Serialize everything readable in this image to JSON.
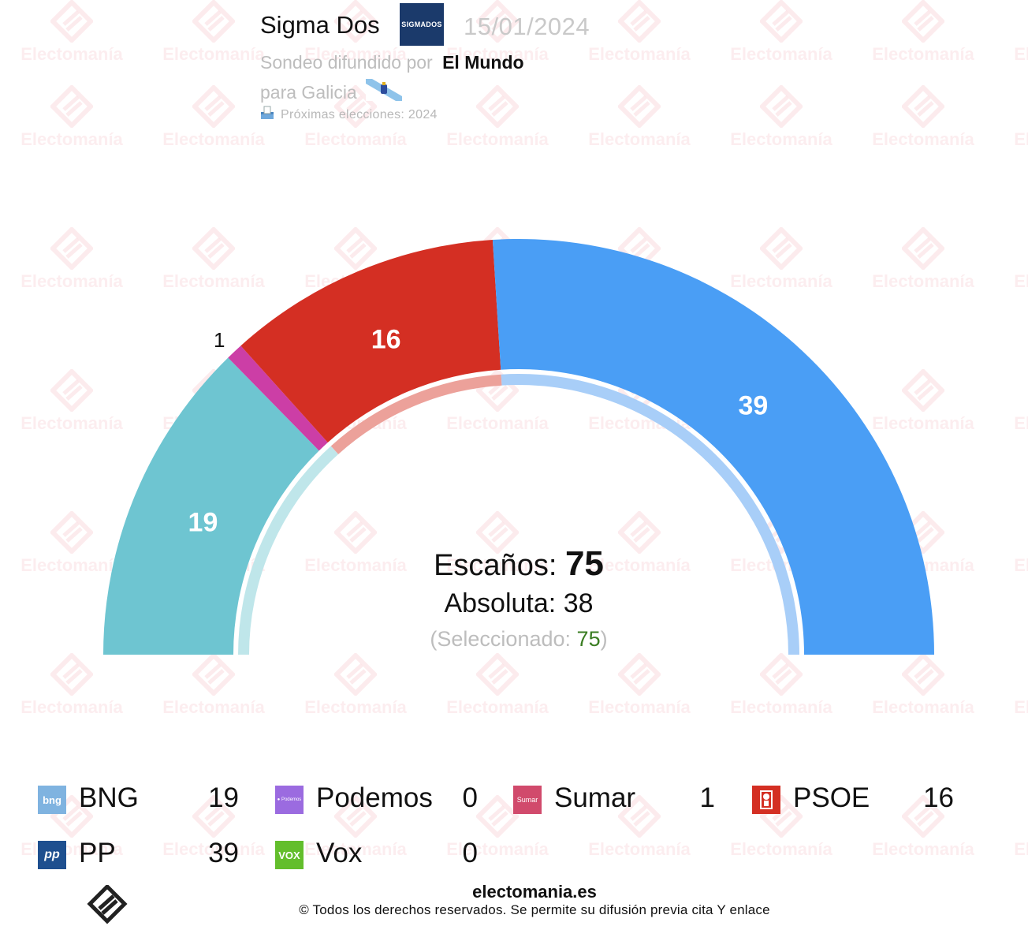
{
  "header": {
    "pollster": "Sigma Dos",
    "pollster_logo_text": "SIGMADOS",
    "date": "15/01/2024",
    "published_by_label": "Sondeo difundido por",
    "media": "El Mundo",
    "region_label": "para Galicia",
    "next_elections": "Próximas elecciones: 2024"
  },
  "watermark": "Electomanía",
  "summary": {
    "seats_label": "Escaños:",
    "seats_total": "75",
    "absolute_label": "Absoluta:",
    "absolute_value": "38",
    "selected_label": "(Seleccionado:",
    "selected_value": "75",
    "selected_close": ")"
  },
  "chart_data": {
    "type": "pie",
    "subtype": "parliament-semicircle",
    "total_seats": 75,
    "majority": 38,
    "series": [
      {
        "name": "BNG",
        "value": 19,
        "color": "#6ec5d1"
      },
      {
        "name": "Podemos",
        "value": 0,
        "color": "#a56de2"
      },
      {
        "name": "Sumar",
        "value": 1,
        "color": "#cc3ea6"
      },
      {
        "name": "PSOE",
        "value": 16,
        "color": "#d42f23"
      },
      {
        "name": "PP",
        "value": 39,
        "color": "#4a9ef5"
      },
      {
        "name": "Vox",
        "value": 0,
        "color": "#63be2c"
      }
    ],
    "inner_ring": [
      {
        "name": "BNG + Sumar block",
        "value": 20,
        "color": "#bfe6ea"
      },
      {
        "name": "PSOE",
        "value": 16,
        "color": "#eca19a"
      },
      {
        "name": "PP",
        "value": 39,
        "color": "#a8cef8"
      }
    ],
    "data_labels": [
      "19",
      "1",
      "16",
      "39"
    ]
  },
  "legend": [
    {
      "name": "BNG",
      "value": "19",
      "icon": "bng-logo-icon",
      "color": "#7fb3e0",
      "icon_text": "bng"
    },
    {
      "name": "Podemos",
      "value": "0",
      "icon": "podemos-logo-icon",
      "color": "#9b6be0",
      "icon_text": "● Podemos"
    },
    {
      "name": "Sumar",
      "value": "1",
      "icon": "sumar-logo-icon",
      "color": "#d14a6c",
      "icon_text": "Sumar"
    },
    {
      "name": "PSOE",
      "value": "16",
      "icon": "psoe-logo-icon",
      "color": "#d42f23",
      "icon_text": ""
    },
    {
      "name": "PP",
      "value": "39",
      "icon": "pp-logo-icon",
      "color": "#1e4f8f",
      "icon_text": "pp"
    },
    {
      "name": "Vox",
      "value": "0",
      "icon": "vox-logo-icon",
      "color": "#63be2c",
      "icon_text": "VOX"
    }
  ],
  "footer": {
    "site": "electomania.es",
    "copyright": "© Todos los derechos reservados. Se permite su difusión previa cita Y enlace"
  }
}
